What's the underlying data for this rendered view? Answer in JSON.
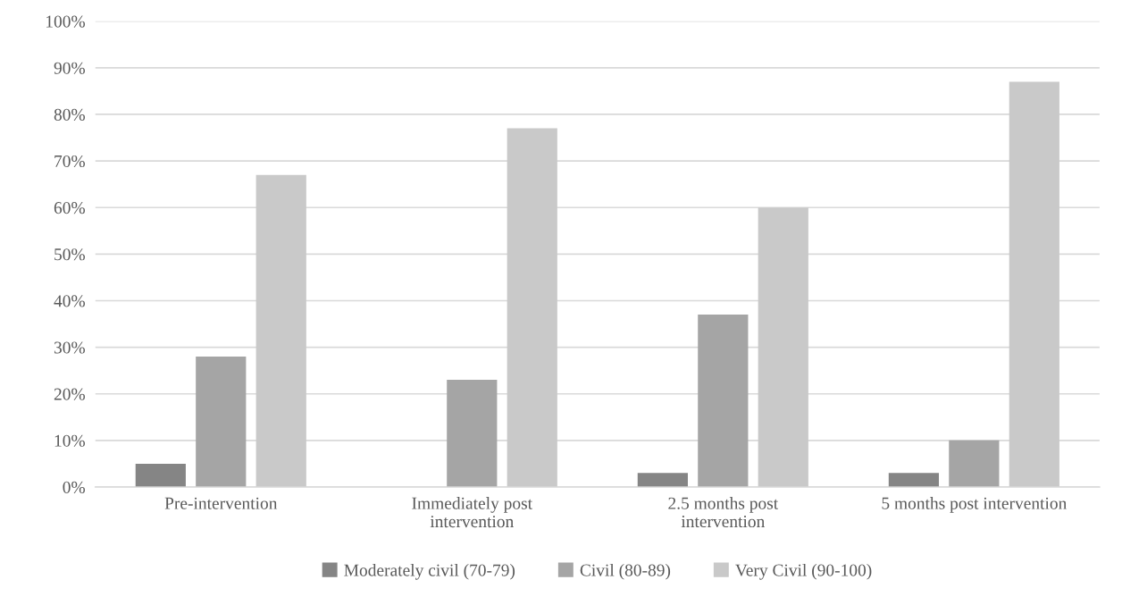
{
  "chart_data": {
    "type": "bar",
    "categories": [
      "Pre-intervention",
      "Immediately post\nintervention",
      "2.5 months post\nintervention",
      "5 months post intervention"
    ],
    "series": [
      {
        "name": "Moderately civil (70-79)",
        "color": "#858585",
        "values": [
          5,
          0,
          3,
          3
        ]
      },
      {
        "name": "Civil (80-89)",
        "color": "#a5a5a5",
        "values": [
          28,
          23,
          37,
          10
        ]
      },
      {
        "name": "Very Civil (90-100)",
        "color": "#c9c9c9",
        "values": [
          67,
          77,
          60,
          87
        ]
      }
    ],
    "ylim": [
      0,
      100
    ],
    "yticks": [
      {
        "value": 0,
        "label": "0%"
      },
      {
        "value": 10,
        "label": "10%"
      },
      {
        "value": 20,
        "label": "20%"
      },
      {
        "value": 30,
        "label": "30%"
      },
      {
        "value": 40,
        "label": "40%"
      },
      {
        "value": 50,
        "label": "50%"
      },
      {
        "value": 60,
        "label": "60%"
      },
      {
        "value": 70,
        "label": "70%"
      },
      {
        "value": 80,
        "label": "80%"
      },
      {
        "value": 90,
        "label": "90%"
      },
      {
        "value": 100,
        "label": "100%"
      }
    ],
    "grid": "y",
    "legend": "bottom"
  }
}
